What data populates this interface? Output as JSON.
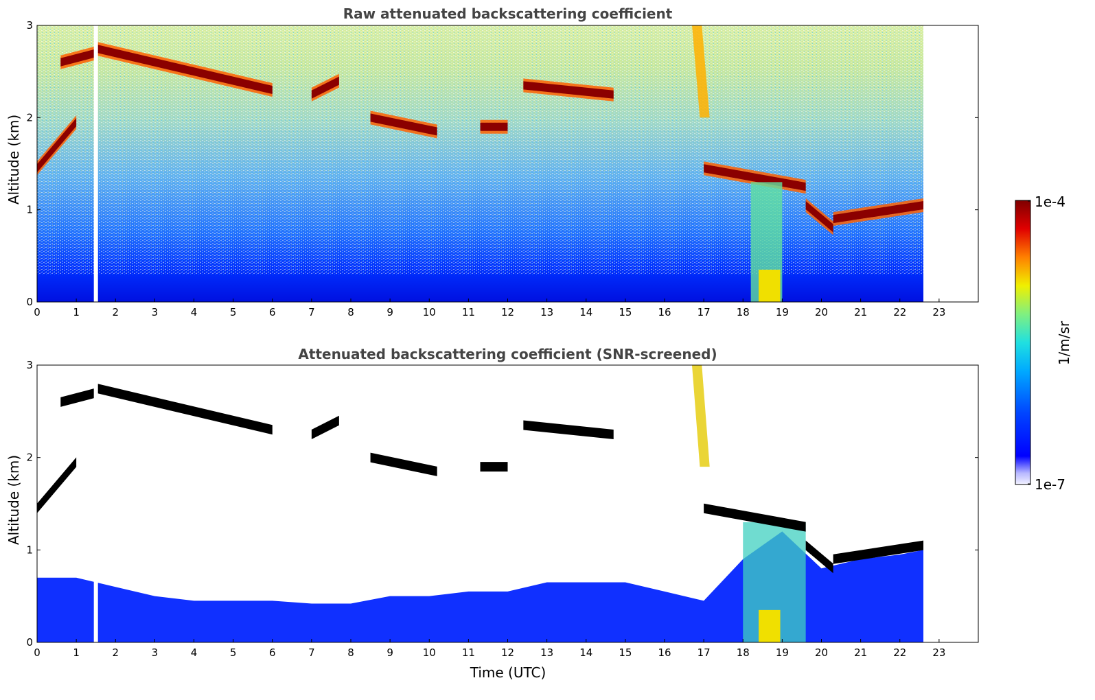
{
  "chart_data": [
    {
      "type": "heatmap",
      "title": "Raw attenuated backscattering coefficient",
      "xlabel": "",
      "ylabel": "Altitude (km)",
      "xlim": [
        0,
        24
      ],
      "ylim": [
        0,
        3
      ],
      "xticks": [
        "0",
        "1",
        "2",
        "3",
        "4",
        "5",
        "6",
        "7",
        "8",
        "9",
        "10",
        "11",
        "12",
        "13",
        "14",
        "15",
        "16",
        "17",
        "18",
        "19",
        "20",
        "21",
        "22",
        "23"
      ],
      "yticks": [
        "0",
        "1",
        "2",
        "3"
      ],
      "data_end_time": 22.6,
      "missing_data_time": 1.5,
      "features": [
        {
          "label": "cloud layer",
          "time_start": 1.5,
          "time_end": 6.0,
          "altitude_km": [
            2.75,
            2.3
          ]
        },
        {
          "label": "cloud layer",
          "time_start": 0.6,
          "time_end": 1.5,
          "altitude_km": [
            2.6,
            2.7
          ]
        },
        {
          "label": "cloud layer",
          "time_start": 7.0,
          "time_end": 7.7,
          "altitude_km": [
            2.25,
            2.4
          ]
        },
        {
          "label": "cloud layer",
          "time_start": 8.5,
          "time_end": 10.2,
          "altitude_km": [
            2.0,
            1.85
          ]
        },
        {
          "label": "cloud layer",
          "time_start": 11.3,
          "time_end": 12.0,
          "altitude_km": [
            1.9,
            1.9
          ]
        },
        {
          "label": "cloud layer",
          "time_start": 12.4,
          "time_end": 14.7,
          "altitude_km": [
            2.35,
            2.25
          ]
        },
        {
          "label": "cloud layer",
          "time_start": 0.0,
          "time_end": 1.0,
          "altitude_km": [
            1.45,
            1.95
          ]
        },
        {
          "label": "cloud layer",
          "time_start": 17.0,
          "time_end": 19.6,
          "altitude_km": [
            1.45,
            1.25
          ]
        },
        {
          "label": "cloud layer",
          "time_start": 19.6,
          "time_end": 20.3,
          "altitude_km": [
            1.05,
            0.8
          ]
        },
        {
          "label": "cloud layer",
          "time_start": 20.3,
          "time_end": 22.6,
          "altitude_km": [
            0.9,
            1.05
          ]
        },
        {
          "label": "precipitation streak",
          "time_start": 16.7,
          "time_end": 17.1,
          "altitude_km": [
            3.0,
            2.0
          ]
        },
        {
          "label": "enhanced backscatter column",
          "time_start": 18.2,
          "time_end": 19.0,
          "altitude_km": [
            0.0,
            1.3
          ]
        }
      ]
    },
    {
      "type": "heatmap",
      "title": "Attenuated backscattering coefficient (SNR-screened)",
      "xlabel": "Time (UTC)",
      "ylabel": "Altitude (km)",
      "xlim": [
        0,
        24
      ],
      "ylim": [
        0,
        3
      ],
      "xticks": [
        "0",
        "1",
        "2",
        "3",
        "4",
        "5",
        "6",
        "7",
        "8",
        "9",
        "10",
        "11",
        "12",
        "13",
        "14",
        "15",
        "16",
        "17",
        "18",
        "19",
        "20",
        "21",
        "22",
        "23"
      ],
      "yticks": [
        "0",
        "1",
        "2",
        "3"
      ],
      "data_end_time": 22.6,
      "missing_data_time": 1.5,
      "screened_boundary_layer_top_km": [
        [
          0,
          0.7
        ],
        [
          1,
          0.7
        ],
        [
          2,
          0.6
        ],
        [
          3,
          0.5
        ],
        [
          4,
          0.45
        ],
        [
          5,
          0.45
        ],
        [
          6,
          0.45
        ],
        [
          7,
          0.42
        ],
        [
          8,
          0.42
        ],
        [
          9,
          0.5
        ],
        [
          10,
          0.5
        ],
        [
          11,
          0.55
        ],
        [
          12,
          0.55
        ],
        [
          13,
          0.65
        ],
        [
          14,
          0.65
        ],
        [
          15,
          0.65
        ],
        [
          16,
          0.55
        ],
        [
          17,
          0.45
        ],
        [
          18,
          0.9
        ],
        [
          19,
          1.2
        ],
        [
          20,
          0.8
        ],
        [
          21,
          0.9
        ],
        [
          22,
          0.95
        ],
        [
          22.6,
          1.0
        ]
      ]
    }
  ],
  "colorbar": {
    "label": "1/m/sr",
    "max_label": "1e-4",
    "min_label": "1e-7",
    "colors": [
      "#f2f2ff",
      "#c8c8ff",
      "#0000ff",
      "#0066ff",
      "#00c8ff",
      "#40f0c0",
      "#c0f040",
      "#ffe000",
      "#ff7000",
      "#e00000",
      "#7f0000"
    ]
  }
}
